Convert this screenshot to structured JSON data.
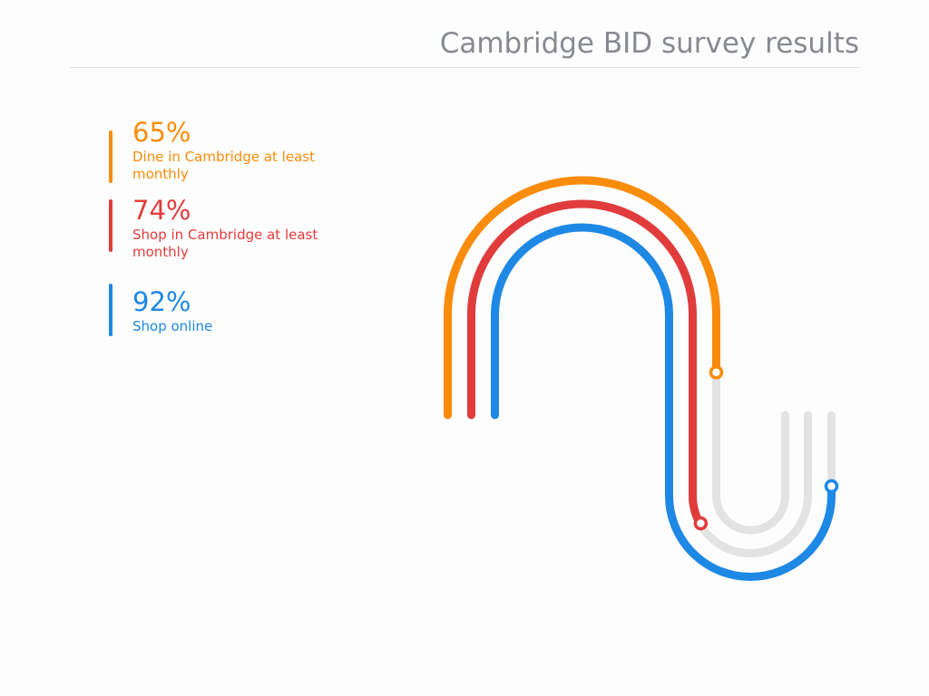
{
  "title": "Cambridge BID survey results",
  "colors": {
    "title": "#878a8f",
    "track": "#e3e3e3",
    "background": "#fdfdfd"
  },
  "chart_data": {
    "type": "gauge",
    "title": "Cambridge BID survey results",
    "unit": "%",
    "range": [
      0,
      100
    ],
    "series": [
      {
        "value": 65,
        "pct_label": "65%",
        "label": "Dine in Cambridge at least monthly",
        "color": "#f98c0a"
      },
      {
        "value": 74,
        "pct_label": "74%",
        "label": "Shop in Cambridge at least monthly",
        "color": "#e13c3c"
      },
      {
        "value": 92,
        "pct_label": "92%",
        "label": "Shop online",
        "color": "#1e88e5"
      }
    ]
  }
}
